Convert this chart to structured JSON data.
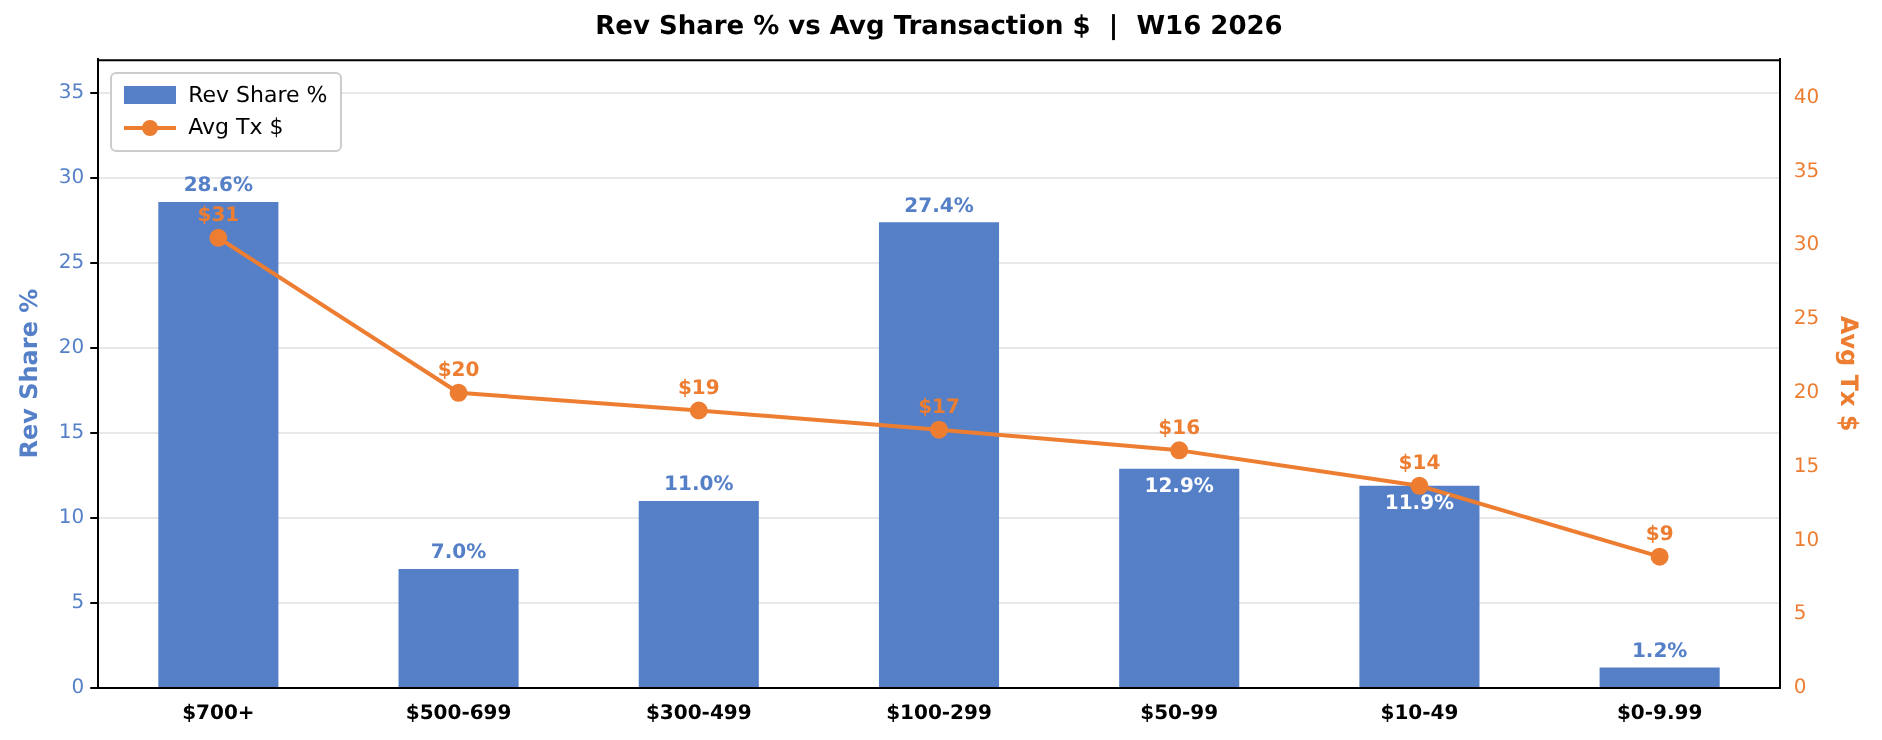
{
  "chart_data": {
    "type": "bar",
    "title": "Rev Share % vs Avg Transaction $  |  W16 2026",
    "ylabel": "Rev Share %",
    "y2label": "Avg Tx $",
    "categories": [
      "$700+",
      "$500-699",
      "$300-499",
      "$100-299",
      "$50-99",
      "$10-49",
      "$0-9.99"
    ],
    "series": [
      {
        "name": "Rev Share %",
        "color": "#5580c8",
        "values": [
          28.6,
          7.0,
          11.0,
          27.4,
          12.9,
          11.9,
          1.2
        ],
        "value_labels": [
          "28.6%",
          "7.0%",
          "11.0%",
          "27.4%",
          "12.9%",
          "11.9%",
          "1.2%"
        ]
      },
      {
        "name": "Avg Tx $",
        "type": "line",
        "axis": "y2",
        "color": "#ed7d31",
        "marker": "circle",
        "values": [
          30.5,
          20.0,
          18.8,
          17.5,
          16.1,
          13.7,
          8.9
        ],
        "value_labels": [
          "$31",
          "$20",
          "$19",
          "$17",
          "$16",
          "$14",
          "$9"
        ]
      }
    ],
    "ylim": [
      0,
      37
    ],
    "yticks": [
      0,
      5,
      10,
      15,
      20,
      25,
      30,
      35
    ],
    "y2lim": [
      0,
      42.6
    ],
    "y2ticks": [
      0,
      5,
      10,
      15,
      20,
      25,
      30,
      35,
      40
    ],
    "grid": "y",
    "legend": "top left"
  }
}
